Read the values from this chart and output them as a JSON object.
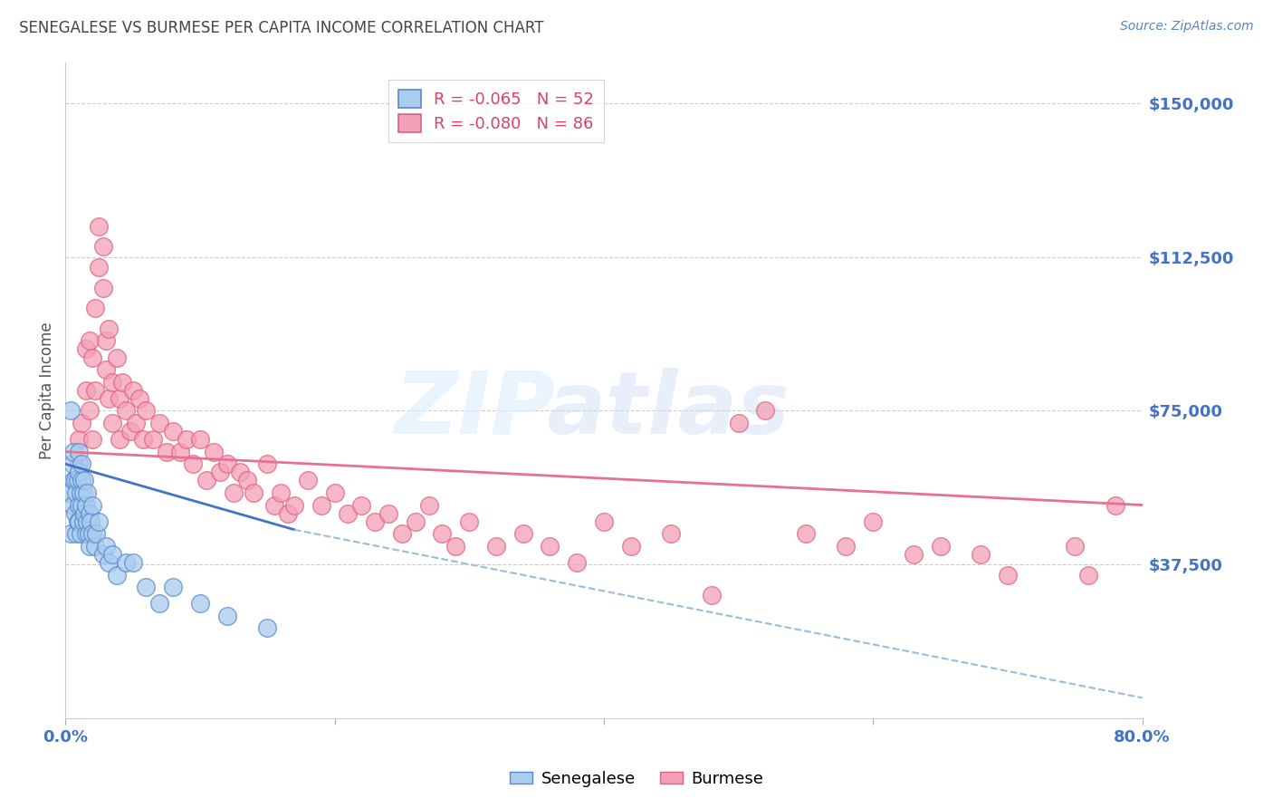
{
  "title": "SENEGALESE VS BURMESE PER CAPITA INCOME CORRELATION CHART",
  "source": "Source: ZipAtlas.com",
  "ylabel": "Per Capita Income",
  "ymin": 0,
  "ymax": 160000,
  "xmin": 0.0,
  "xmax": 0.8,
  "title_color": "#444444",
  "source_color": "#5585c5",
  "ylabel_color": "#555555",
  "ytick_color": "#4472c4",
  "xtick_color": "#4472c4",
  "grid_color": "#cccccc",
  "senegalese_color": "#aaccee",
  "burmese_color": "#f4a0b8",
  "senegalese_edge_color": "#5588cc",
  "burmese_edge_color": "#e06080",
  "senegalese_line_color": "#4472c4",
  "burmese_line_color": "#e87090",
  "senegalese_dash_color": "#99bbdd",
  "burmese_x": [
    0.01,
    0.01,
    0.012,
    0.015,
    0.015,
    0.018,
    0.018,
    0.02,
    0.02,
    0.022,
    0.022,
    0.025,
    0.025,
    0.028,
    0.028,
    0.03,
    0.03,
    0.032,
    0.032,
    0.035,
    0.035,
    0.038,
    0.04,
    0.04,
    0.042,
    0.045,
    0.048,
    0.05,
    0.052,
    0.055,
    0.058,
    0.06,
    0.065,
    0.07,
    0.075,
    0.08,
    0.085,
    0.09,
    0.095,
    0.1,
    0.105,
    0.11,
    0.115,
    0.12,
    0.125,
    0.13,
    0.135,
    0.14,
    0.15,
    0.155,
    0.16,
    0.165,
    0.17,
    0.18,
    0.19,
    0.2,
    0.21,
    0.22,
    0.23,
    0.24,
    0.25,
    0.26,
    0.27,
    0.28,
    0.29,
    0.3,
    0.32,
    0.34,
    0.36,
    0.38,
    0.4,
    0.42,
    0.45,
    0.48,
    0.5,
    0.52,
    0.55,
    0.58,
    0.6,
    0.63,
    0.65,
    0.68,
    0.7,
    0.75,
    0.76,
    0.78
  ],
  "burmese_y": [
    68000,
    62000,
    72000,
    80000,
    90000,
    75000,
    92000,
    68000,
    88000,
    80000,
    100000,
    110000,
    120000,
    105000,
    115000,
    92000,
    85000,
    78000,
    95000,
    72000,
    82000,
    88000,
    68000,
    78000,
    82000,
    75000,
    70000,
    80000,
    72000,
    78000,
    68000,
    75000,
    68000,
    72000,
    65000,
    70000,
    65000,
    68000,
    62000,
    68000,
    58000,
    65000,
    60000,
    62000,
    55000,
    60000,
    58000,
    55000,
    62000,
    52000,
    55000,
    50000,
    52000,
    58000,
    52000,
    55000,
    50000,
    52000,
    48000,
    50000,
    45000,
    48000,
    52000,
    45000,
    42000,
    48000,
    42000,
    45000,
    42000,
    38000,
    48000,
    42000,
    45000,
    30000,
    72000,
    75000,
    45000,
    42000,
    48000,
    40000,
    42000,
    40000,
    35000,
    42000,
    35000,
    52000
  ],
  "senegalese_x": [
    0.003,
    0.004,
    0.005,
    0.005,
    0.006,
    0.006,
    0.007,
    0.007,
    0.008,
    0.008,
    0.009,
    0.009,
    0.01,
    0.01,
    0.01,
    0.01,
    0.011,
    0.011,
    0.012,
    0.012,
    0.012,
    0.013,
    0.013,
    0.014,
    0.014,
    0.015,
    0.015,
    0.016,
    0.016,
    0.017,
    0.018,
    0.018,
    0.019,
    0.02,
    0.02,
    0.022,
    0.023,
    0.025,
    0.028,
    0.03,
    0.032,
    0.035,
    0.038,
    0.045,
    0.05,
    0.06,
    0.07,
    0.08,
    0.1,
    0.12,
    0.15,
    0.004
  ],
  "senegalese_y": [
    55000,
    45000,
    52000,
    62000,
    58000,
    65000,
    50000,
    58000,
    45000,
    55000,
    48000,
    58000,
    52000,
    60000,
    65000,
    48000,
    55000,
    45000,
    52000,
    58000,
    62000,
    48000,
    55000,
    50000,
    58000,
    45000,
    52000,
    48000,
    55000,
    45000,
    42000,
    50000,
    48000,
    45000,
    52000,
    42000,
    45000,
    48000,
    40000,
    42000,
    38000,
    40000,
    35000,
    38000,
    38000,
    32000,
    28000,
    32000,
    28000,
    25000,
    22000,
    75000
  ],
  "burmese_trend_x": [
    0.0,
    0.8
  ],
  "burmese_trend_y": [
    65000,
    52000
  ],
  "senegalese_solid_trend_x": [
    0.0,
    0.17
  ],
  "senegalese_solid_trend_y": [
    62000,
    46000
  ],
  "senegalese_dash_trend_x": [
    0.17,
    0.8
  ],
  "senegalese_dash_trend_y": [
    46000,
    5000
  ],
  "yticks": [
    0,
    37500,
    75000,
    112500,
    150000
  ],
  "ytick_labels": [
    "",
    "$37,500",
    "$75,000",
    "$112,500",
    "$150,000"
  ]
}
